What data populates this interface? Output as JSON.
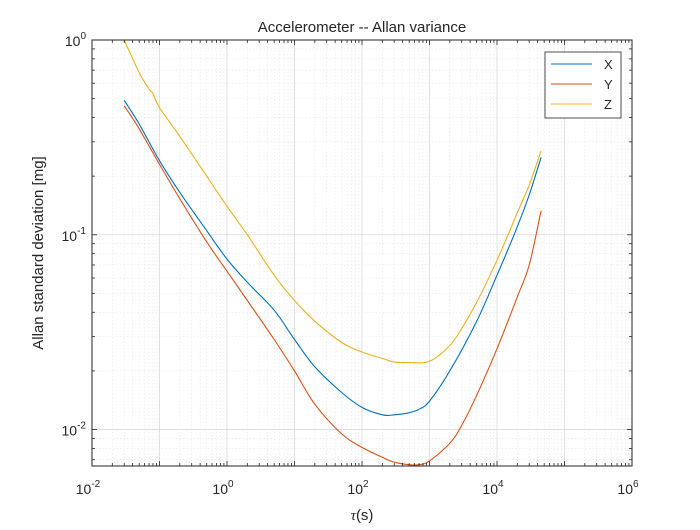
{
  "chart_data": {
    "type": "line",
    "title": "Accelerometer -- Allan variance",
    "xlabel_symbol": "τ",
    "xlabel_unit": "(s)",
    "ylabel": "Allan standard deviation [mg]",
    "xscale": "log",
    "yscale": "log",
    "xlim": [
      0.01,
      1000000
    ],
    "ylim": [
      0.0065,
      1
    ],
    "grid": true,
    "minor_grid": true,
    "legend_position": "top-right",
    "x_ticks": [
      {
        "base": "10",
        "exp": "-2"
      },
      {
        "base": "10",
        "exp": "0"
      },
      {
        "base": "10",
        "exp": "2"
      },
      {
        "base": "10",
        "exp": "4"
      },
      {
        "base": "10",
        "exp": "6"
      }
    ],
    "y_ticks": [
      {
        "base": "10",
        "exp": "-2"
      },
      {
        "base": "10",
        "exp": "-1"
      },
      {
        "base": "10",
        "exp": "0"
      }
    ],
    "series": [
      {
        "name": "X",
        "color": "#0072bd",
        "points": [
          [
            0.03,
            0.49
          ],
          [
            0.05,
            0.37
          ],
          [
            0.1,
            0.24
          ],
          [
            0.2,
            0.165
          ],
          [
            0.5,
            0.105
          ],
          [
            1,
            0.075
          ],
          [
            2,
            0.057
          ],
          [
            5,
            0.041
          ],
          [
            10,
            0.029
          ],
          [
            20,
            0.021
          ],
          [
            50,
            0.0155
          ],
          [
            100,
            0.013
          ],
          [
            200,
            0.0119
          ],
          [
            300,
            0.0119
          ],
          [
            500,
            0.0122
          ],
          [
            700,
            0.0127
          ],
          [
            1000,
            0.014
          ],
          [
            2000,
            0.02
          ],
          [
            5000,
            0.036
          ],
          [
            10000,
            0.062
          ],
          [
            20000,
            0.11
          ],
          [
            30000,
            0.16
          ],
          [
            45000,
            0.25
          ]
        ]
      },
      {
        "name": "Y",
        "color": "#d95319",
        "points": [
          [
            0.03,
            0.46
          ],
          [
            0.05,
            0.35
          ],
          [
            0.1,
            0.23
          ],
          [
            0.2,
            0.153
          ],
          [
            0.5,
            0.092
          ],
          [
            1,
            0.065
          ],
          [
            2,
            0.046
          ],
          [
            5,
            0.029
          ],
          [
            10,
            0.02
          ],
          [
            20,
            0.0135
          ],
          [
            50,
            0.0095
          ],
          [
            100,
            0.0081
          ],
          [
            200,
            0.0072
          ],
          [
            300,
            0.0068
          ],
          [
            500,
            0.0066
          ],
          [
            700,
            0.0066
          ],
          [
            1000,
            0.0069
          ],
          [
            2000,
            0.0085
          ],
          [
            3000,
            0.0105
          ],
          [
            5000,
            0.015
          ],
          [
            10000,
            0.026
          ],
          [
            20000,
            0.048
          ],
          [
            30000,
            0.07
          ],
          [
            45000,
            0.133
          ]
        ]
      },
      {
        "name": "Z",
        "color": "#edb120",
        "points": [
          [
            0.03,
            1.0
          ],
          [
            0.05,
            0.68
          ],
          [
            0.07,
            0.56
          ],
          [
            0.08,
            0.53
          ],
          [
            0.1,
            0.45
          ],
          [
            0.2,
            0.32
          ],
          [
            0.5,
            0.2
          ],
          [
            1,
            0.14
          ],
          [
            2,
            0.1
          ],
          [
            5,
            0.062
          ],
          [
            10,
            0.046
          ],
          [
            20,
            0.036
          ],
          [
            50,
            0.028
          ],
          [
            100,
            0.025
          ],
          [
            200,
            0.0232
          ],
          [
            300,
            0.0222
          ],
          [
            500,
            0.0221
          ],
          [
            1000,
            0.0224
          ],
          [
            2000,
            0.027
          ],
          [
            3000,
            0.033
          ],
          [
            5000,
            0.045
          ],
          [
            10000,
            0.074
          ],
          [
            20000,
            0.13
          ],
          [
            30000,
            0.18
          ],
          [
            45000,
            0.27
          ]
        ]
      }
    ]
  }
}
